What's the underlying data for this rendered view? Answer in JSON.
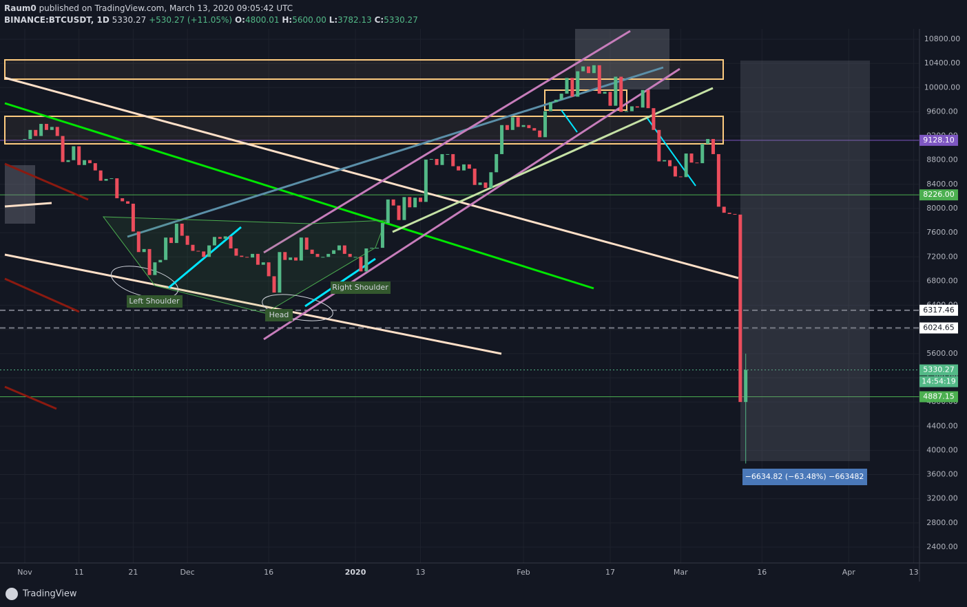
{
  "header": {
    "author": "Raum0",
    "published": "published on TradingView.com, March 13, 2020 09:05:42 UTC",
    "symbol": "BINANCE:BTCUSDT, 1D",
    "last": "5330.27",
    "change": "+530.27 (+11.05%)",
    "o_label": "O:",
    "open": "4800.01",
    "h_label": "H:",
    "high": "5600.00",
    "l_label": "L:",
    "low": "3782.13",
    "c_label": "C:",
    "close": "5330.27"
  },
  "chart_data": {
    "type": "candlestick",
    "categories": [
      "Nov",
      null,
      null,
      null,
      null,
      null,
      null,
      null,
      null,
      null,
      "11",
      null,
      null,
      null,
      null,
      null,
      null,
      null,
      null,
      null,
      "21",
      null,
      null,
      null,
      null,
      null,
      null,
      null,
      null,
      null,
      "Dec",
      null,
      null,
      null,
      null,
      null,
      null,
      null,
      null,
      null,
      null,
      null,
      null,
      null,
      null,
      "16",
      null,
      null,
      null,
      null,
      null,
      null,
      null,
      null,
      null,
      null,
      null,
      null,
      null,
      null,
      null,
      "2020",
      null,
      null,
      null,
      null,
      null,
      null,
      null,
      null,
      null,
      null,
      null,
      "13",
      null,
      null,
      null,
      null,
      null,
      null,
      null,
      null,
      null,
      null,
      null,
      null,
      null,
      null,
      null,
      null,
      null,
      null,
      "Feb",
      null,
      null,
      null,
      null,
      null,
      null,
      null,
      null,
      null,
      null,
      null,
      null,
      null,
      null,
      null,
      "17",
      null,
      null,
      null,
      null,
      null,
      null,
      null,
      null,
      null,
      null,
      null,
      null,
      "Mar",
      null,
      null,
      null,
      null,
      null,
      null,
      null,
      null,
      null,
      null,
      null,
      null,
      null,
      null,
      "16",
      null,
      null,
      null,
      null,
      null,
      null,
      null,
      null,
      null,
      null,
      null,
      null,
      null,
      null,
      null,
      "Apr",
      null,
      null,
      null,
      null,
      null,
      null,
      null,
      null,
      null,
      null,
      null,
      "13"
    ],
    "values": [
      9150,
      9300,
      9200,
      9400,
      9300,
      9350,
      9200,
      8770,
      8800,
      9030,
      8720,
      8800,
      8750,
      8630,
      8460,
      8490,
      8500,
      8170,
      8120,
      8080,
      7620,
      7280,
      7330,
      6900,
      7110,
      7150,
      7520,
      7430,
      7750,
      7550,
      7400,
      7300,
      7290,
      7200,
      7390,
      7530,
      7500,
      7540,
      7340,
      7220,
      7200,
      7190,
      7250,
      7070,
      7110,
      6880,
      6610,
      7280,
      7150,
      7190,
      7140,
      7520,
      7320,
      7250,
      7200,
      7200,
      7250,
      7310,
      7390,
      7250,
      7200,
      7200,
      6960,
      7340,
      7350,
      7350,
      7760,
      8150,
      8050,
      7810,
      8190,
      8020,
      8180,
      8110,
      8810,
      8820,
      8720,
      8900,
      8900,
      8700,
      8630,
      8730,
      8660,
      8390,
      8430,
      8340,
      8600,
      8900,
      9380,
      9300,
      9510,
      9350,
      9380,
      9330,
      9290,
      9180,
      9610,
      9760,
      9800,
      9900,
      10160,
      9850,
      10270,
      10350,
      10240,
      10370,
      9900,
      9930,
      9700,
      10180,
      9600,
      9610,
      9690,
      9670,
      9960,
      9660,
      9300,
      8780,
      8800,
      8700,
      8530,
      8520,
      8910,
      8760,
      8750,
      9070,
      9150,
      8900,
      8030,
      7930,
      7910,
      7900,
      4800,
      5330.27,
      null,
      null,
      null,
      null,
      null,
      null,
      null,
      null,
      null,
      null,
      null,
      null,
      null,
      null,
      null,
      null,
      null,
      null,
      null,
      null,
      null,
      null,
      null,
      null,
      null,
      null,
      null,
      null,
      null,
      null,
      null
    ],
    "up_color": "#53b987",
    "down_color": "#eb4d5c",
    "ylim": [
      2138,
      10971
    ],
    "yticks": [
      {
        "value": 2400,
        "label": "2400.00"
      },
      {
        "value": 2800,
        "label": "2800.00"
      },
      {
        "value": 3200,
        "label": "3200.00"
      },
      {
        "value": 3600,
        "label": "3600.00"
      },
      {
        "value": 4000,
        "label": "4000.00"
      },
      {
        "value": 4400,
        "label": "4400.00"
      },
      {
        "value": 4800,
        "label": "4800.00"
      },
      {
        "value": 5200,
        "label": "5200.00"
      },
      {
        "value": 5600,
        "label": "5600.00"
      },
      {
        "value": 6000,
        "label": "6000.00"
      },
      {
        "value": 6400,
        "label": "6400.00"
      },
      {
        "value": 6800,
        "label": "6800.00"
      },
      {
        "value": 7200,
        "label": "7200.00"
      },
      {
        "value": 7600,
        "label": "7600.00"
      },
      {
        "value": 8000,
        "label": "8000.00"
      },
      {
        "value": 8400,
        "label": "8400.00"
      },
      {
        "value": 8800,
        "label": "8800.00"
      },
      {
        "value": 9200,
        "label": "9200.00"
      },
      {
        "value": 9600,
        "label": "9600.00"
      },
      {
        "value": 10000,
        "label": "10000.00"
      },
      {
        "value": 10400,
        "label": "10400.00"
      },
      {
        "value": 10800,
        "label": "10800.00"
      }
    ],
    "grid": true,
    "levels": [
      {
        "value": 9128.1,
        "label": "9128.10",
        "color": "#7e57c2",
        "style": "solid"
      },
      {
        "value": 8226.0,
        "label": "8226.00",
        "color": "#4caf50",
        "style": "solid"
      },
      {
        "value": 6317.46,
        "label": "6317.46",
        "color": "#787b86",
        "style": "dashed"
      },
      {
        "value": 6024.65,
        "label": "6024.65",
        "color": "#787b86",
        "style": "dashed"
      },
      {
        "value": 5330.27,
        "label": "5330.27",
        "color": "#53b987",
        "style": "dotted"
      },
      {
        "value": 4887.15,
        "label": "4887.15",
        "color": "#4caf50",
        "style": "solid"
      }
    ],
    "countdown": "14:54:19",
    "annotations": {
      "left_shoulder": "Left Shoulder",
      "head": "Head",
      "right_shoulder": "Right Shoulder",
      "measure": "−6634.82 (−63.48%) −663482"
    }
  },
  "footer": {
    "brand": "TradingView"
  }
}
